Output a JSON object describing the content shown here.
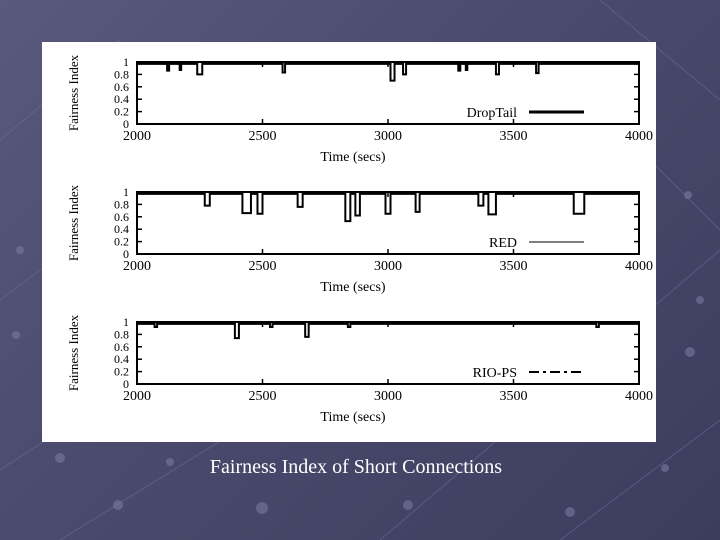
{
  "slide": {
    "caption": "Fairness Index of Short Connections"
  },
  "chart_data": [
    {
      "type": "line",
      "ylabel": "Fairness Index",
      "xlabel": "Time (secs)",
      "xlim": [
        2000,
        4000
      ],
      "ylim": [
        0,
        1
      ],
      "xticks": [
        "2000",
        "2500",
        "3000",
        "3500",
        "4000"
      ],
      "yticks": [
        "0",
        "0.2",
        "0.4",
        "0.6",
        "0.8",
        "1"
      ],
      "legend_position": "bottom-right",
      "series": [
        {
          "name": "DropTail",
          "baseline": 0.97,
          "dips": [
            {
              "x": 2120,
              "w": 8,
              "y": 0.86
            },
            {
              "x": 2170,
              "w": 6,
              "y": 0.87
            },
            {
              "x": 2240,
              "w": 20,
              "y": 0.8
            },
            {
              "x": 2580,
              "w": 10,
              "y": 0.83
            },
            {
              "x": 3010,
              "w": 16,
              "y": 0.7
            },
            {
              "x": 3060,
              "w": 12,
              "y": 0.8
            },
            {
              "x": 3280,
              "w": 8,
              "y": 0.86
            },
            {
              "x": 3310,
              "w": 6,
              "y": 0.87
            },
            {
              "x": 3430,
              "w": 12,
              "y": 0.8
            },
            {
              "x": 3590,
              "w": 10,
              "y": 0.82
            }
          ]
        }
      ]
    },
    {
      "type": "line",
      "ylabel": "Fairness Index",
      "xlabel": "Time (secs)",
      "xlim": [
        2000,
        4000
      ],
      "ylim": [
        0,
        1
      ],
      "xticks": [
        "2000",
        "2500",
        "3000",
        "3500",
        "4000"
      ],
      "yticks": [
        "0",
        "0.2",
        "0.4",
        "0.6",
        "0.8",
        "1"
      ],
      "legend_position": "bottom-right",
      "series": [
        {
          "name": "RED",
          "baseline": 0.97,
          "dips": [
            {
              "x": 2270,
              "w": 20,
              "y": 0.78
            },
            {
              "x": 2420,
              "w": 34,
              "y": 0.66
            },
            {
              "x": 2480,
              "w": 20,
              "y": 0.65
            },
            {
              "x": 2640,
              "w": 20,
              "y": 0.76
            },
            {
              "x": 2830,
              "w": 20,
              "y": 0.53
            },
            {
              "x": 2870,
              "w": 18,
              "y": 0.62
            },
            {
              "x": 2990,
              "w": 20,
              "y": 0.65
            },
            {
              "x": 3110,
              "w": 16,
              "y": 0.68
            },
            {
              "x": 3360,
              "w": 20,
              "y": 0.78
            },
            {
              "x": 3400,
              "w": 30,
              "y": 0.64
            },
            {
              "x": 3740,
              "w": 42,
              "y": 0.65
            }
          ]
        }
      ]
    },
    {
      "type": "line",
      "ylabel": "Fairness Index",
      "xlabel": "Time (secs)",
      "xlim": [
        2000,
        4000
      ],
      "ylim": [
        0,
        1
      ],
      "xticks": [
        "2000",
        "2500",
        "3000",
        "3500",
        "4000"
      ],
      "yticks": [
        "0",
        "0.2",
        "0.4",
        "0.6",
        "0.8",
        "1"
      ],
      "legend_position": "bottom-right",
      "series": [
        {
          "name": "RIO-PS",
          "baseline": 0.97,
          "dips": [
            {
              "x": 2070,
              "w": 10,
              "y": 0.92
            },
            {
              "x": 2390,
              "w": 16,
              "y": 0.74
            },
            {
              "x": 2530,
              "w": 10,
              "y": 0.92
            },
            {
              "x": 2670,
              "w": 14,
              "y": 0.76
            },
            {
              "x": 2840,
              "w": 10,
              "y": 0.92
            },
            {
              "x": 3830,
              "w": 10,
              "y": 0.92
            }
          ]
        }
      ]
    }
  ]
}
